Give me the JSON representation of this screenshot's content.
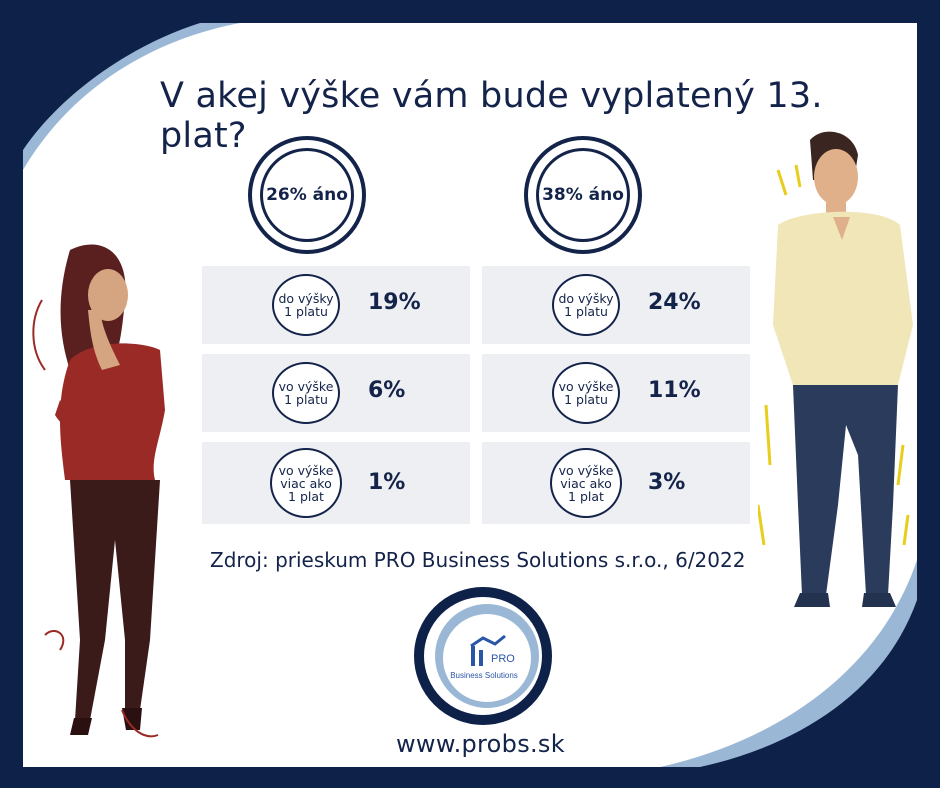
{
  "title": "V akej výške vám bude vyplatený 13. plat?",
  "left": {
    "total": "26% áno",
    "rows": [
      {
        "badge": "do výšky\n1 platu",
        "pct": "19%"
      },
      {
        "badge": "vo výške\n1 platu",
        "pct": "6%"
      },
      {
        "badge": "vo výške\nviac ako\n1 plat",
        "pct": "1%"
      }
    ]
  },
  "right": {
    "total": "38% áno",
    "rows": [
      {
        "badge": "do výšky\n1 platu",
        "pct": "24%"
      },
      {
        "badge": "vo výške\n1 platu",
        "pct": "11%"
      },
      {
        "badge": "vo výške\nviac ako\n1 plat",
        "pct": "3%"
      }
    ]
  },
  "source": "Zdroj: prieskum PRO Business Solutions s.r.o., 6/2022",
  "logo": {
    "brand": "PRO",
    "name": "Business Solutions"
  },
  "url": "www.probs.sk",
  "colors": {
    "navy": "#13234a",
    "frame": "#0e2148",
    "light_blue": "#9ab8d6",
    "row_bg": "#eeeff2"
  }
}
